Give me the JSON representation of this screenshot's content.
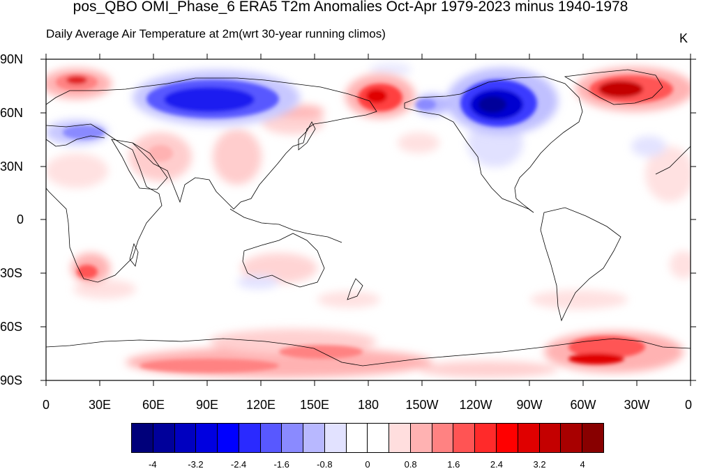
{
  "figure": {
    "title": "pos_QBO OMI_Phase_6 ERA5 T2m Anomalies Oct-Apr 1979-2023 minus 1940-1978",
    "subtitle": "Daily Average Air Temperature at 2m(wrt 30-year running climos)",
    "units": "K"
  },
  "axes": {
    "y_ticks": [
      "90N",
      "60N",
      "30N",
      "0",
      "30S",
      "60S",
      "90S"
    ],
    "x_ticks": [
      "0",
      "30E",
      "60E",
      "90E",
      "120E",
      "150E",
      "180",
      "150W",
      "120W",
      "90W",
      "60W",
      "30W",
      "0"
    ]
  },
  "colorbar": {
    "colors": [
      "#00007a",
      "#00009a",
      "#0000c0",
      "#0000e0",
      "#0000ff",
      "#2a2aff",
      "#5858ff",
      "#8a8aff",
      "#b8b8ff",
      "#e2e2ff",
      "#ffffff",
      "#ffffff",
      "#ffdede",
      "#ffb2b2",
      "#ff8282",
      "#ff5454",
      "#ff2a2a",
      "#ff0000",
      "#e00000",
      "#c40000",
      "#a80000",
      "#880000"
    ],
    "labels": [
      "-4",
      "-3.2",
      "-2.4",
      "-1.6",
      "-0.8",
      "0",
      "0.8",
      "1.6",
      "2.4",
      "3.2",
      "4"
    ]
  },
  "anomalies": [
    {
      "region": "Central Siberia",
      "sign": "cold",
      "level": 3
    },
    {
      "region": "Hudson Bay / Northern Canada",
      "sign": "cold",
      "level": 4
    },
    {
      "region": "Greenland",
      "sign": "warm",
      "level": 4
    },
    {
      "region": "Northern Scandinavia",
      "sign": "warm",
      "level": 2
    },
    {
      "region": "Eastern Siberia / Alaska",
      "sign": "warm",
      "level": 3
    },
    {
      "region": "Antarctica",
      "sign": "warm",
      "level": 2
    }
  ]
}
